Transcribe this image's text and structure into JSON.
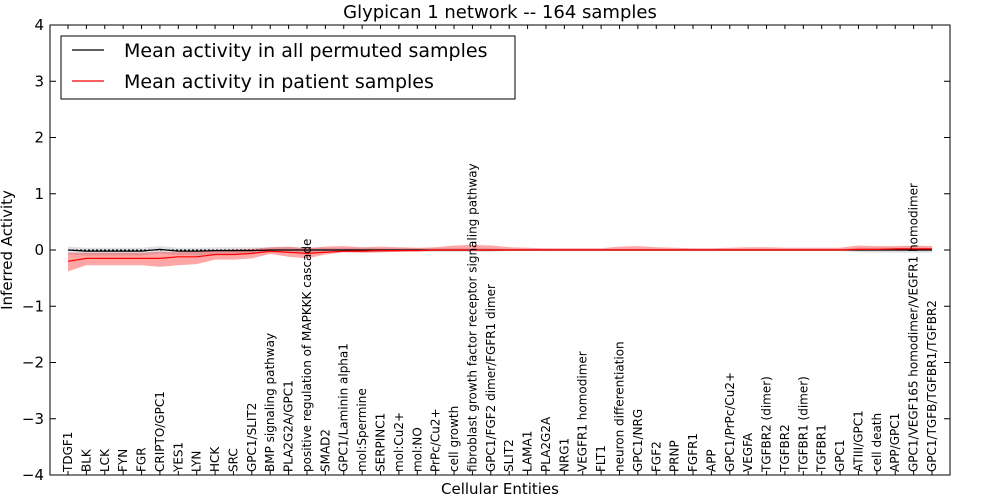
{
  "chart_data": {
    "type": "line",
    "title": "Glypican 1 network -- 164 samples",
    "xlabel": "Cellular Entities",
    "ylabel": "Inferred Activity",
    "ylim": [
      -4,
      4
    ],
    "yticks": [
      -4,
      -3,
      -2,
      -1,
      0,
      1,
      2,
      3,
      4
    ],
    "ytick_labels": [
      "−4",
      "−3",
      "−2",
      "−1",
      "0",
      "1",
      "2",
      "3",
      "4"
    ],
    "legend_position": "upper-left",
    "categories": [
      "TDGF1",
      "BLK",
      "LCK",
      "FYN",
      "FGR",
      "CRIPTO/GPC1",
      "YES1",
      "LYN",
      "HCK",
      "SRC",
      "GPC1/SLIT2",
      "BMP signaling pathway",
      "PLA2G2A/GPC1",
      "positive regulation of MAPKKK cascade",
      "SMAD2",
      "GPC1/Laminin alpha1",
      "mol:Spermine",
      "SERPINC1",
      "mol:Cu2+",
      "mol:NO",
      "PrPc/Cu2+",
      "cell growth",
      "fibroblast growth factor receptor signaling pathway",
      "GPC1/FGF2 dimer/FGFR1 dimer",
      "SLIT2",
      "LAMA1",
      "PLA2G2A",
      "NRG1",
      "VEGFR1 homodimer",
      "FLT1",
      "neuron differentiation",
      "GPC1/NRG",
      "FGF2",
      "PRNP",
      "FGFR1",
      "APP",
      "GPC1/PrPc/Cu2+",
      "VEGFA",
      "TGFBR2 (dimer)",
      "TGFBR2",
      "TGFBR1 (dimer)",
      "TGFBR1",
      "GPC1",
      "ATIII/GPC1",
      "cell death",
      "APP/GPC1",
      "GPC1/VEGF165 homodimer/VEGFR1 homodimer",
      "GPC1/TGFB/TGFBR1/TGFBR2"
    ],
    "series": [
      {
        "name": "Mean activity in all permuted samples",
        "color": "#000000",
        "values": [
          0.0,
          -0.02,
          -0.02,
          -0.02,
          -0.02,
          0.01,
          -0.02,
          -0.02,
          -0.01,
          -0.01,
          -0.01,
          0.0,
          0.0,
          0.0,
          0.0,
          0.0,
          0.0,
          0.0,
          0.0,
          0.0,
          0.0,
          0.0,
          0.0,
          0.0,
          0.0,
          0.0,
          0.0,
          0.0,
          0.0,
          0.0,
          0.0,
          0.0,
          0.0,
          0.0,
          0.0,
          0.0,
          0.0,
          0.0,
          0.0,
          0.0,
          0.0,
          0.0,
          0.0,
          0.0,
          0.0,
          0.0,
          0.0,
          0.0
        ],
        "band_low": [
          -0.08,
          -0.1,
          -0.1,
          -0.1,
          -0.1,
          -0.06,
          -0.09,
          -0.09,
          -0.08,
          -0.07,
          -0.06,
          -0.05,
          -0.05,
          -0.05,
          -0.05,
          -0.04,
          -0.04,
          -0.04,
          -0.03,
          -0.03,
          -0.03,
          -0.03,
          -0.03,
          -0.03,
          -0.02,
          -0.02,
          -0.02,
          -0.02,
          -0.02,
          -0.02,
          -0.02,
          -0.02,
          -0.02,
          -0.02,
          -0.02,
          -0.02,
          -0.02,
          -0.02,
          -0.02,
          -0.02,
          -0.02,
          -0.02,
          -0.02,
          -0.04,
          -0.05,
          -0.05,
          -0.05,
          -0.05
        ],
        "band_high": [
          0.06,
          0.04,
          0.04,
          0.04,
          0.04,
          0.07,
          0.04,
          0.04,
          0.05,
          0.05,
          0.05,
          0.05,
          0.05,
          0.05,
          0.04,
          0.04,
          0.04,
          0.03,
          0.03,
          0.03,
          0.03,
          0.03,
          0.03,
          0.03,
          0.02,
          0.02,
          0.02,
          0.02,
          0.02,
          0.02,
          0.02,
          0.02,
          0.02,
          0.02,
          0.02,
          0.02,
          0.02,
          0.02,
          0.02,
          0.02,
          0.02,
          0.02,
          0.02,
          0.04,
          0.04,
          0.04,
          0.04,
          0.04
        ]
      },
      {
        "name": "Mean activity in patient samples",
        "color": "#ff0000",
        "values": [
          -0.2,
          -0.15,
          -0.15,
          -0.15,
          -0.15,
          -0.15,
          -0.12,
          -0.12,
          -0.08,
          -0.08,
          -0.06,
          -0.02,
          -0.04,
          -0.06,
          -0.04,
          -0.02,
          -0.02,
          -0.01,
          -0.01,
          -0.01,
          0.0,
          0.0,
          0.0,
          0.0,
          0.0,
          0.0,
          0.0,
          0.0,
          0.0,
          0.0,
          0.0,
          0.0,
          0.0,
          0.0,
          0.0,
          0.0,
          0.0,
          0.0,
          0.0,
          0.0,
          0.0,
          0.0,
          0.0,
          0.01,
          0.01,
          0.02,
          0.02,
          0.02
        ],
        "band_low": [
          -0.38,
          -0.27,
          -0.27,
          -0.27,
          -0.27,
          -0.3,
          -0.27,
          -0.25,
          -0.17,
          -0.17,
          -0.15,
          -0.07,
          -0.12,
          -0.15,
          -0.08,
          -0.04,
          -0.05,
          -0.04,
          -0.03,
          -0.02,
          -0.02,
          -0.02,
          -0.02,
          -0.02,
          -0.01,
          -0.01,
          -0.01,
          -0.01,
          -0.01,
          -0.01,
          -0.01,
          -0.01,
          -0.01,
          -0.01,
          -0.01,
          -0.01,
          -0.01,
          -0.01,
          -0.01,
          -0.01,
          -0.01,
          -0.01,
          -0.01,
          -0.01,
          -0.01,
          -0.01,
          -0.01,
          -0.01
        ],
        "band_high": [
          -0.05,
          -0.05,
          -0.05,
          -0.05,
          -0.05,
          -0.03,
          -0.04,
          -0.03,
          0.0,
          0.01,
          0.02,
          0.05,
          0.06,
          0.03,
          0.06,
          0.07,
          0.05,
          0.06,
          0.05,
          0.04,
          0.05,
          0.08,
          0.09,
          0.08,
          0.05,
          0.04,
          0.03,
          0.03,
          0.03,
          0.03,
          0.06,
          0.07,
          0.05,
          0.04,
          0.03,
          0.03,
          0.04,
          0.05,
          0.05,
          0.04,
          0.04,
          0.04,
          0.04,
          0.08,
          0.07,
          0.07,
          0.08,
          0.07
        ]
      }
    ]
  }
}
